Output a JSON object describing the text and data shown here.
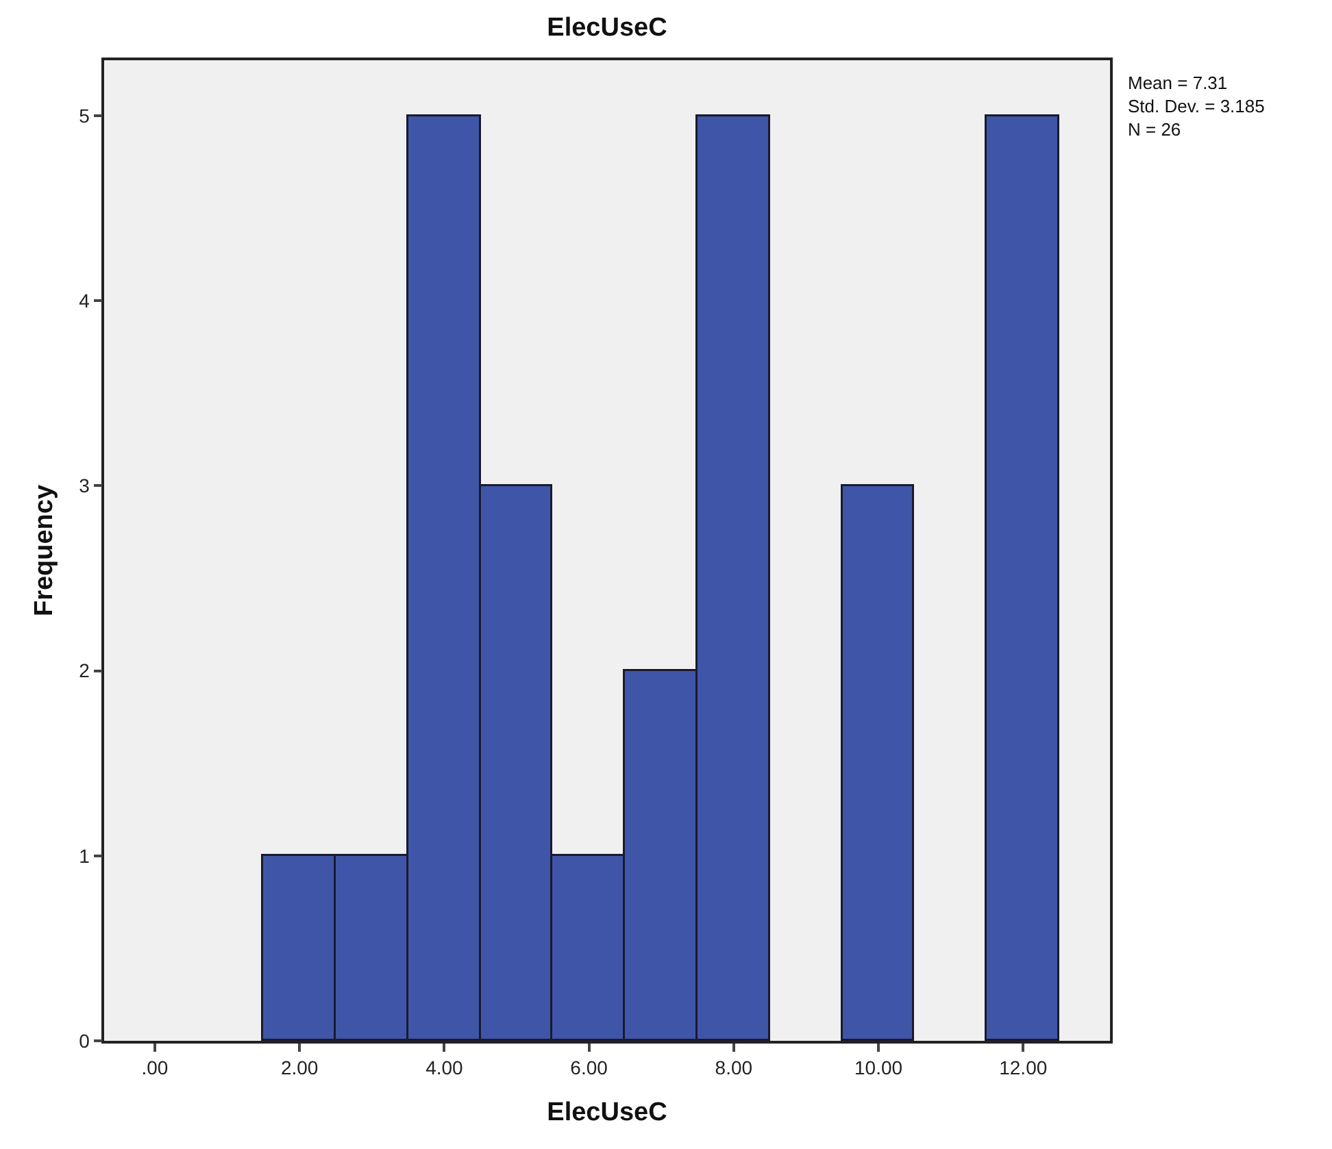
{
  "chart_data": {
    "type": "histogram",
    "title": "ElecUseC",
    "xlabel": "ElecUseC",
    "ylabel": "Frequency",
    "bins": [
      1.5,
      2.5,
      3.5,
      4.5,
      5.5,
      6.5,
      7.5,
      8.5,
      9.5,
      10.5,
      11.5,
      12.5
    ],
    "values": [
      1,
      1,
      5,
      3,
      1,
      2,
      5,
      0,
      3,
      0,
      5
    ],
    "color": "#3f56a8",
    "xlim": [
      -0.7,
      13.2
    ],
    "xticks": [
      {
        "value": 0,
        "label": ".00"
      },
      {
        "value": 2,
        "label": "2.00"
      },
      {
        "value": 4,
        "label": "4.00"
      },
      {
        "value": 6,
        "label": "6.00"
      },
      {
        "value": 8,
        "label": "8.00"
      },
      {
        "value": 10,
        "label": "10.00"
      },
      {
        "value": 12,
        "label": "12.00"
      }
    ],
    "ylim": [
      0,
      5.3
    ],
    "yticks": [
      0,
      1,
      2,
      3,
      4,
      5
    ],
    "annotations": [
      "Mean = 7.31",
      "Std. Dev. = 3.185",
      "N = 26"
    ]
  }
}
